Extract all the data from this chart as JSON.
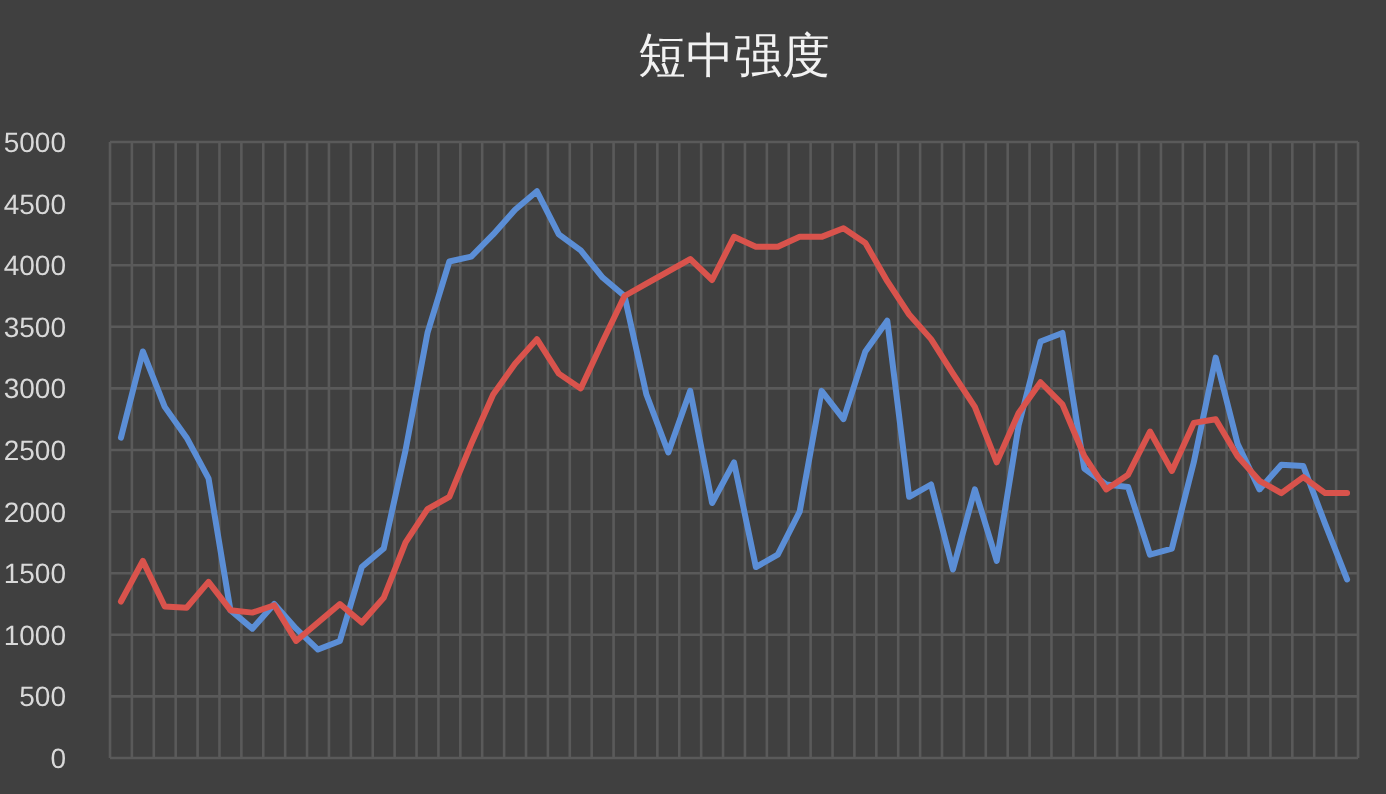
{
  "chart_data": {
    "type": "line",
    "title": "短中强度",
    "categories": [
      null,
      null,
      null,
      null,
      null,
      null,
      null,
      null,
      null,
      null,
      null,
      null,
      null,
      null,
      null,
      null,
      null,
      null,
      null,
      null,
      null,
      null,
      null,
      null,
      null,
      null,
      null,
      null,
      null,
      null,
      null,
      null,
      null,
      null,
      null,
      null,
      null,
      null,
      null,
      null,
      null,
      null,
      null,
      null,
      null,
      null,
      null,
      null,
      null,
      null,
      null,
      null,
      null,
      null,
      null,
      null,
      null
    ],
    "series": [
      {
        "color": "#5b8ed6",
        "values": [
          2600,
          3300,
          2850,
          2600,
          2270,
          1200,
          1050,
          1250,
          1050,
          880,
          950,
          1550,
          1700,
          2500,
          3450,
          4030,
          4070,
          4250,
          4450,
          4600,
          4250,
          4120,
          3900,
          3750,
          2950,
          2480,
          2980,
          2070,
          2400,
          1550,
          1650,
          2000,
          2980,
          2750,
          3300,
          3550,
          2120,
          2220,
          1530,
          2180,
          1600,
          2700,
          3380,
          3450,
          2350,
          2220,
          2200,
          1650,
          1700,
          2400,
          3250,
          2550,
          2180,
          2380,
          2370,
          1900,
          1450
        ]
      },
      {
        "color": "#d9534c",
        "values": [
          1270,
          1600,
          1230,
          1220,
          1430,
          1200,
          1180,
          1240,
          950,
          1100,
          1250,
          1100,
          1300,
          1750,
          2020,
          2120,
          2550,
          2950,
          3200,
          3400,
          3120,
          3000,
          3380,
          3750,
          3850,
          3950,
          4050,
          3880,
          4230,
          4150,
          4150,
          4230,
          4230,
          4300,
          4180,
          3870,
          3600,
          3400,
          3120,
          2850,
          2400,
          2800,
          3050,
          2870,
          2450,
          2180,
          2300,
          2650,
          2330,
          2720,
          2750,
          2450,
          2250,
          2150,
          2280,
          2150,
          2150
        ]
      }
    ],
    "ylim": [
      0,
      5000
    ],
    "yticks": [
      0,
      500,
      1000,
      1500,
      2000,
      2500,
      3000,
      3500,
      4000,
      4500,
      5000
    ],
    "grid": true,
    "tick_labels": "y",
    "marker": "none",
    "line_style": "solid"
  }
}
